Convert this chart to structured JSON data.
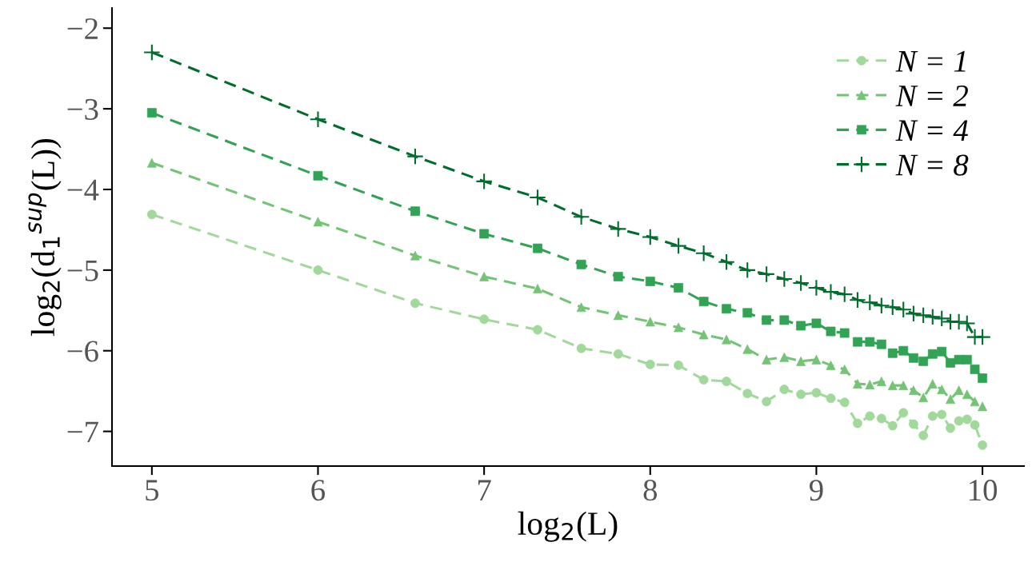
{
  "chart_data": {
    "type": "line",
    "xlabel": "log$_{2}$(L)",
    "ylabel": "log$_{2}$(d$_{1}$$^{sup}$(L))",
    "x": [
      5.0,
      6.0,
      6.585,
      7.0,
      7.322,
      7.585,
      7.807,
      8.0,
      8.17,
      8.322,
      8.459,
      8.585,
      8.7,
      8.807,
      8.907,
      9.0,
      9.087,
      9.17,
      9.248,
      9.322,
      9.392,
      9.459,
      9.524,
      9.585,
      9.644,
      9.7,
      9.755,
      9.807,
      9.858,
      9.907,
      9.954,
      10.0
    ],
    "series": [
      {
        "name": "N = 1",
        "color": "#a1d99b",
        "marker": "circle",
        "values": [
          -4.31,
          -5.0,
          -5.41,
          -5.61,
          -5.74,
          -5.97,
          -6.04,
          -6.17,
          -6.18,
          -6.36,
          -6.38,
          -6.53,
          -6.63,
          -6.48,
          -6.54,
          -6.52,
          -6.59,
          -6.64,
          -6.9,
          -6.81,
          -6.84,
          -6.93,
          -6.77,
          -6.91,
          -7.05,
          -6.81,
          -6.79,
          -6.96,
          -6.87,
          -6.85,
          -6.92,
          -7.17
        ]
      },
      {
        "name": "N = 2",
        "color": "#74c476",
        "marker": "triangle",
        "values": [
          -3.67,
          -4.4,
          -4.82,
          -5.08,
          -5.23,
          -5.46,
          -5.56,
          -5.64,
          -5.71,
          -5.8,
          -5.86,
          -5.98,
          -6.11,
          -6.08,
          -6.13,
          -6.11,
          -6.18,
          -6.23,
          -6.41,
          -6.42,
          -6.38,
          -6.43,
          -6.43,
          -6.49,
          -6.58,
          -6.41,
          -6.48,
          -6.6,
          -6.49,
          -6.54,
          -6.63,
          -6.69
        ]
      },
      {
        "name": "N = 4",
        "color": "#31a354",
        "marker": "square",
        "values": [
          -3.05,
          -3.83,
          -4.27,
          -4.55,
          -4.73,
          -4.93,
          -5.08,
          -5.14,
          -5.22,
          -5.39,
          -5.48,
          -5.53,
          -5.62,
          -5.62,
          -5.69,
          -5.66,
          -5.76,
          -5.78,
          -5.89,
          -5.89,
          -5.92,
          -6.03,
          -6.0,
          -6.09,
          -6.13,
          -6.04,
          -6.01,
          -6.15,
          -6.11,
          -6.11,
          -6.23,
          -6.34
        ]
      },
      {
        "name": "N = 8",
        "color": "#006d2c",
        "marker": "cross",
        "values": [
          -2.3,
          -3.13,
          -3.59,
          -3.9,
          -4.1,
          -4.34,
          -4.49,
          -4.59,
          -4.7,
          -4.79,
          -4.9,
          -5.0,
          -5.05,
          -5.11,
          -5.16,
          -5.22,
          -5.27,
          -5.3,
          -5.37,
          -5.4,
          -5.44,
          -5.46,
          -5.49,
          -5.54,
          -5.56,
          -5.58,
          -5.6,
          -5.64,
          -5.64,
          -5.66,
          -5.83,
          -5.83
        ]
      }
    ],
    "xlim": [
      4.76,
      10.25
    ],
    "ylim": [
      -7.43,
      -1.75
    ],
    "xticks": [
      5,
      6,
      7,
      8,
      9,
      10
    ],
    "yticks": [
      {
        "value": -2,
        "label": "−2"
      },
      {
        "value": -3,
        "label": "−3"
      },
      {
        "value": -4,
        "label": "−4"
      },
      {
        "value": -5,
        "label": "−5"
      },
      {
        "value": -6,
        "label": "−6"
      },
      {
        "value": -7,
        "label": "−7"
      }
    ],
    "line_style": "dashed",
    "grid": false,
    "legend": "top right"
  }
}
